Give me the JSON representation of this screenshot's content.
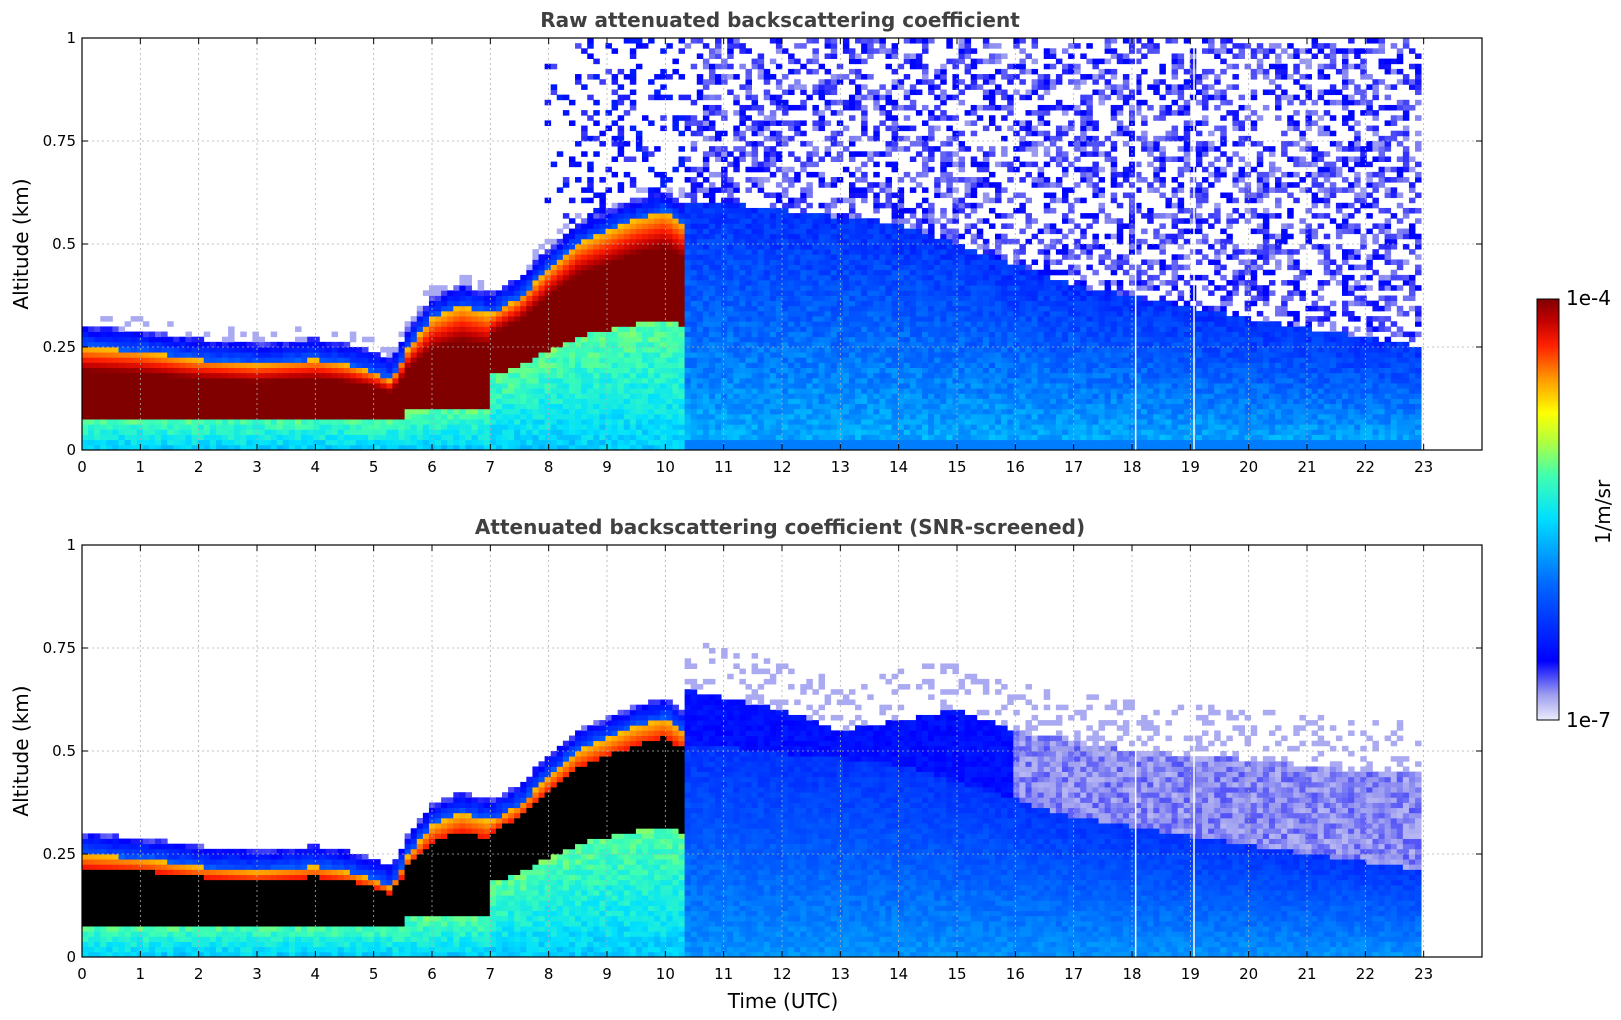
{
  "chart_data": [
    {
      "type": "heatmap",
      "title": "Raw attenuated backscattering coefficient",
      "xlabel": "",
      "ylabel": "Altitude (km)",
      "xlim": [
        0,
        24
      ],
      "ylim": [
        0,
        1
      ],
      "x_ticks": [
        "0",
        "1",
        "2",
        "3",
        "4",
        "5",
        "6",
        "7",
        "8",
        "9",
        "10",
        "11",
        "12",
        "13",
        "14",
        "15",
        "16",
        "17",
        "18",
        "19",
        "20",
        "21",
        "22",
        "23"
      ],
      "y_ticks": [
        "0",
        "0.25",
        "0.5",
        "0.75",
        "1"
      ],
      "grid": true,
      "data_end_hour": 23,
      "boundary_layer_top_km": [
        [
          0,
          0.25
        ],
        [
          1,
          0.24
        ],
        [
          2,
          0.22
        ],
        [
          3,
          0.21
        ],
        [
          4,
          0.22
        ],
        [
          4.5,
          0.21
        ],
        [
          5,
          0.19
        ],
        [
          5.3,
          0.17
        ],
        [
          5.6,
          0.25
        ],
        [
          6,
          0.32
        ],
        [
          6.5,
          0.35
        ],
        [
          7,
          0.33
        ],
        [
          7.5,
          0.37
        ],
        [
          8,
          0.44
        ],
        [
          8.5,
          0.5
        ],
        [
          9,
          0.53
        ],
        [
          9.5,
          0.56
        ],
        [
          10,
          0.58
        ],
        [
          10.3,
          0.55
        ]
      ],
      "aerosol_layer_top_km": [
        [
          11,
          0.6
        ],
        [
          14,
          0.55
        ],
        [
          17,
          0.4
        ],
        [
          20,
          0.32
        ],
        [
          23,
          0.25
        ]
      ],
      "noise_region_start_hour": 7.8
    },
    {
      "type": "heatmap",
      "title": "Attenuated backscattering coefficient (SNR-screened)",
      "xlabel": "Time (UTC)",
      "ylabel": "Altitude (km)",
      "xlim": [
        0,
        24
      ],
      "ylim": [
        0,
        1
      ],
      "x_ticks": [
        "0",
        "1",
        "2",
        "3",
        "4",
        "5",
        "6",
        "7",
        "8",
        "9",
        "10",
        "11",
        "12",
        "13",
        "14",
        "15",
        "16",
        "17",
        "18",
        "19",
        "20",
        "21",
        "22",
        "23"
      ],
      "y_ticks": [
        "0",
        "0.25",
        "0.5",
        "0.75",
        "1"
      ],
      "grid": true,
      "data_end_hour": 23,
      "saturated_color": "#000000",
      "screened_top_km": [
        [
          10.3,
          0.65
        ],
        [
          12,
          0.6
        ],
        [
          13,
          0.55
        ],
        [
          15,
          0.6
        ],
        [
          16,
          0.55
        ],
        [
          18,
          0.5
        ],
        [
          20,
          0.48
        ],
        [
          22,
          0.45
        ],
        [
          23,
          0.45
        ]
      ]
    }
  ],
  "colorbar": {
    "label": "1/m/sr",
    "max_label": "1e-4",
    "min_label": "1e-7",
    "scale": "log",
    "range": [
      1e-07,
      0.0001
    ],
    "colormap": "jet",
    "low_color": "#e8e8f8"
  }
}
